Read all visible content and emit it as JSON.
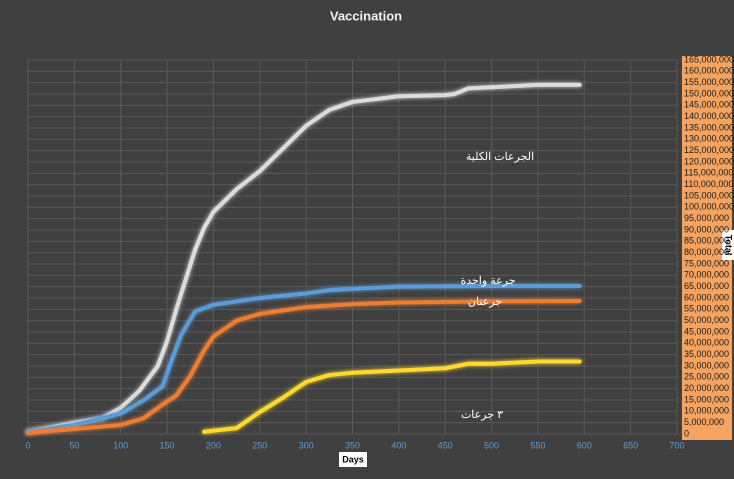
{
  "chart_data": {
    "type": "line",
    "title": "Vaccination",
    "xlabel": "Days",
    "ylabel": "Total",
    "grid": true,
    "xlim": [
      0,
      700
    ],
    "xticks": [
      0,
      50,
      100,
      150,
      200,
      250,
      300,
      350,
      400,
      450,
      500,
      550,
      600,
      650,
      700
    ],
    "ylim": [
      0,
      165000000
    ],
    "yticks": [
      0,
      {
        "value": 5000000,
        "label": "5,000,000"
      },
      {
        "value": 10000000,
        "label": "10,000,000"
      },
      {
        "value": 15000000,
        "label": "15,000,000"
      },
      {
        "value": 20000000,
        "label": "20,000,000"
      },
      {
        "value": 25000000,
        "label": "25,000,000"
      },
      {
        "value": 30000000,
        "label": "30,000,000"
      },
      {
        "value": 35000000,
        "label": "35,000,000"
      },
      {
        "value": 40000000,
        "label": "40,000,000"
      },
      {
        "value": 45000000,
        "label": "45,000,000"
      },
      {
        "value": 50000000,
        "label": "50,000,000"
      },
      {
        "value": 55000000,
        "label": "55,000,000"
      },
      {
        "value": 60000000,
        "label": "60,000,000"
      },
      {
        "value": 65000000,
        "label": "65,000,000"
      },
      {
        "value": 70000000,
        "label": "70,000,000"
      },
      {
        "value": 75000000,
        "label": "75,000,000"
      },
      {
        "value": 80000000,
        "label": "80,000,000"
      },
      {
        "value": 85000000,
        "label": "85,000,000"
      },
      {
        "value": 90000000,
        "label": "90,000,000"
      },
      {
        "value": 95000000,
        "label": "95,000,000"
      },
      {
        "value": 100000000,
        "label": "100,000,000"
      },
      {
        "value": 105000000,
        "label": "105,000,000"
      },
      {
        "value": 110000000,
        "label": "110,000,000"
      },
      {
        "value": 115000000,
        "label": "115,000,000"
      },
      {
        "value": 120000000,
        "label": "120,000,000"
      },
      {
        "value": 125000000,
        "label": "125,000,000"
      },
      {
        "value": 130000000,
        "label": "130,000,000"
      },
      {
        "value": 135000000,
        "label": "135,000,000"
      },
      {
        "value": 140000000,
        "label": "140,000,000"
      },
      {
        "value": 145000000,
        "label": "145,000,000"
      },
      {
        "value": 150000000,
        "label": "150,000,000"
      },
      {
        "value": 155000000,
        "label": "155,000,000"
      },
      {
        "value": 160000000,
        "label": "160,000,000"
      },
      {
        "value": 165000000,
        "label": "165,000,000"
      }
    ],
    "series": [
      {
        "name": "الجرعات الكلية",
        "color": "#dcdcdc",
        "x": [
          0,
          50,
          80,
          100,
          120,
          140,
          150,
          160,
          170,
          180,
          190,
          200,
          225,
          250,
          275,
          300,
          325,
          350,
          400,
          450,
          460,
          475,
          500,
          550,
          595
        ],
        "values": [
          1000000,
          5000000,
          7000000,
          11500000,
          19000000,
          30000000,
          41000000,
          55000000,
          68000000,
          81000000,
          91000000,
          98000000,
          108000000,
          116000000,
          126000000,
          136000000,
          143000000,
          146500000,
          149000000,
          149500000,
          150000000,
          152500000,
          153000000,
          154000000,
          154000000
        ]
      },
      {
        "name": "جرعة واحدة",
        "color": "#5b9bd5",
        "x": [
          0,
          50,
          100,
          125,
          145,
          155,
          165,
          180,
          200,
          250,
          300,
          325,
          350,
          400,
          500,
          595
        ],
        "values": [
          1000000,
          4000000,
          9000000,
          15000000,
          21000000,
          32600000,
          43600000,
          54000000,
          57000000,
          60000000,
          62000000,
          63500000,
          64000000,
          65000000,
          65300000,
          65300000
        ]
      },
      {
        "name": "جرعتان",
        "color": "#ed7d31",
        "x": [
          0,
          50,
          100,
          125,
          145,
          160,
          175,
          190,
          200,
          225,
          250,
          300,
          350,
          400,
          500,
          595
        ],
        "values": [
          500000,
          2200000,
          4000000,
          7000000,
          13000000,
          17000000,
          25600000,
          37000000,
          43000000,
          50000000,
          53000000,
          56000000,
          57300000,
          58000000,
          58500000,
          58700000
        ]
      },
      {
        "name": "٣ جرعات",
        "color": "#ffd92f",
        "x": [
          190,
          225,
          250,
          275,
          300,
          325,
          350,
          400,
          450,
          475,
          500,
          550,
          595
        ],
        "values": [
          1000000,
          2600000,
          9700000,
          16000000,
          23000000,
          26000000,
          27000000,
          28000000,
          29000000,
          31000000,
          31000000,
          32000000,
          32000000
        ]
      }
    ]
  }
}
